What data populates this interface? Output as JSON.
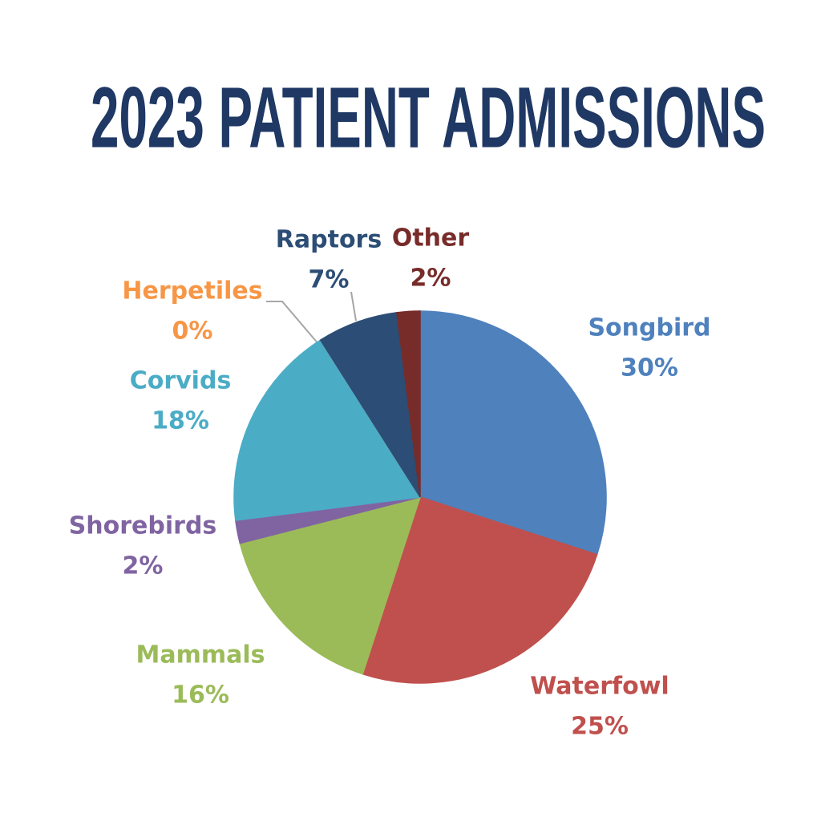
{
  "chart_data": {
    "type": "pie",
    "title": "2023 PATIENT ADMISSIONS",
    "categories": [
      "Songbird",
      "Waterfowl",
      "Mammals",
      "Shorebirds",
      "Corvids",
      "Herpetiles",
      "Raptors",
      "Other"
    ],
    "values": [
      30,
      25,
      16,
      2,
      18,
      0,
      7,
      2
    ],
    "value_labels": [
      "30%",
      "25%",
      "16%",
      "2%",
      "18%",
      "0%",
      "7%",
      "2%"
    ],
    "colors": [
      "#4f81bd",
      "#c0504d",
      "#9bbb59",
      "#8064a2",
      "#4bacc6",
      "#f79646",
      "#2c4d75",
      "#772c2a"
    ]
  }
}
